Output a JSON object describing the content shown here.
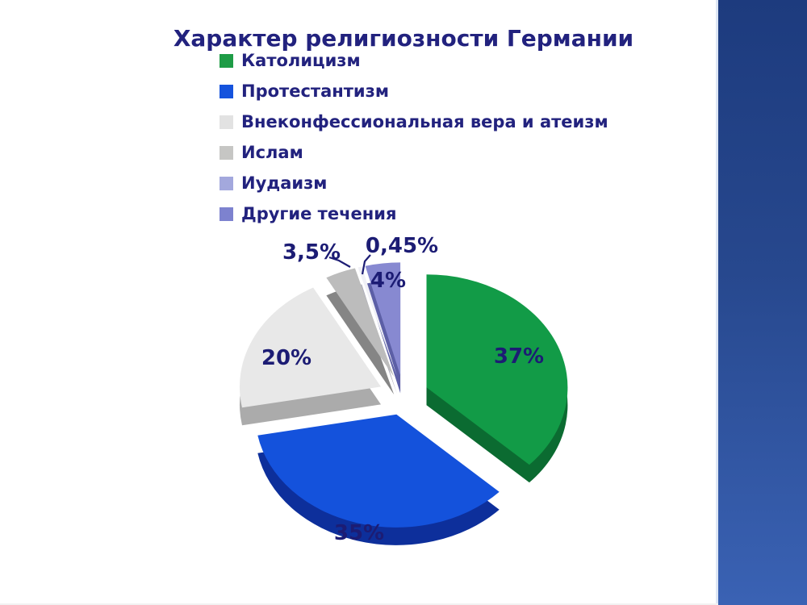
{
  "page": {
    "title": "Характер религиозности Германии"
  },
  "legend": {
    "items": [
      {
        "label": "Католицизм",
        "color": "#1e9c46"
      },
      {
        "label": "Протестантизм",
        "color": "#1553dd"
      },
      {
        "label": "Внеконфессиональная вера и атеизм",
        "color": "#e2e2e2"
      },
      {
        "label": "Ислам",
        "color": "#c6c6c4"
      },
      {
        "label": "Иудаизм",
        "color": "#a3a8dd"
      },
      {
        "label": "Другие течения",
        "color": "#7d82cf"
      }
    ]
  },
  "chart_data": {
    "type": "pie",
    "style": "3d-exploded",
    "title": "Характер религиозности Германии",
    "categories": [
      "Католицизм",
      "Протестантизм",
      "Внеконфессиональная вера и атеизм",
      "Ислам",
      "Иудаизм",
      "Другие течения"
    ],
    "values": [
      37,
      35,
      20,
      3.5,
      0.45,
      4
    ],
    "labels": [
      "37%",
      "35%",
      "20%",
      "3,5%",
      "0,45%",
      "4%"
    ],
    "colors": [
      "#129b47",
      "#1452dc",
      "#e8e8e8",
      "#bcbcbc",
      "#f0f0f6",
      "#8789d1"
    ],
    "side_colors": [
      "#0b6b31",
      "#0d2f9b",
      "#ababab",
      "#858585",
      "#aaaab8",
      "#5c5fa6"
    ],
    "label_color": "#1c1c74",
    "legend_position": "top-left",
    "start_angle_deg": 0,
    "direction": "clockwise"
  },
  "sidebar": {
    "gradient_top": "#1d3b7e",
    "gradient_bottom": "#3a62b4"
  }
}
